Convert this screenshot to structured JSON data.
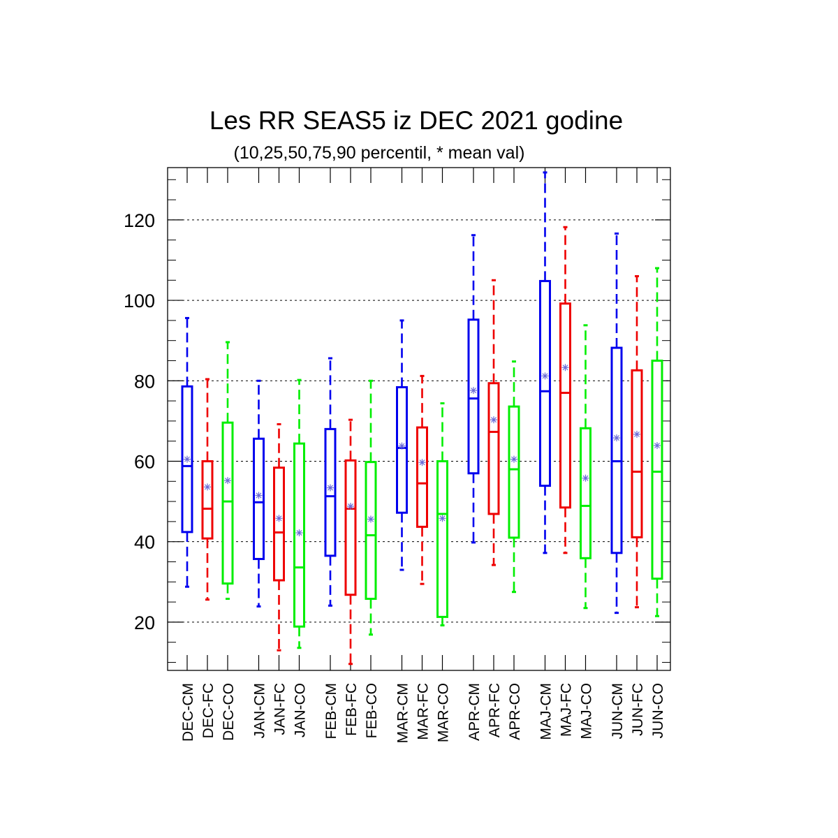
{
  "chart_data": {
    "type": "box",
    "title": "Les RR SEAS5 iz DEC 2021 godine",
    "subtitle": "(10,25,50,75,90 percentil, * mean val)",
    "ylim": [
      8,
      133
    ],
    "yticks": [
      20,
      40,
      60,
      80,
      100,
      120
    ],
    "grid": "horizontal dashed at major ticks",
    "series_colors": {
      "CM": "#0000ee",
      "FC": "#ee0000",
      "CO": "#00ee00"
    },
    "mean_marker_color": "#6b6bd6",
    "boxes": [
      {
        "label": "DEC-CM",
        "p10": 28.8,
        "p25": 42.4,
        "p50": 58.8,
        "p75": 78.6,
        "p90": 95.6,
        "mean": 60.5
      },
      {
        "label": "DEC-FC",
        "p10": 25.6,
        "p25": 40.8,
        "p50": 48.2,
        "p75": 60.0,
        "p90": 80.4,
        "mean": 53.6
      },
      {
        "label": "DEC-CO",
        "p10": 25.8,
        "p25": 29.6,
        "p50": 50.0,
        "p75": 69.6,
        "p90": 89.6,
        "mean": 55.2
      },
      {
        "label": "JAN-CM",
        "p10": 23.9,
        "p25": 35.7,
        "p50": 49.8,
        "p75": 65.6,
        "p90": 80.0,
        "mean": 51.5
      },
      {
        "label": "JAN-FC",
        "p10": 13.0,
        "p25": 30.4,
        "p50": 42.3,
        "p75": 58.4,
        "p90": 69.2,
        "mean": 45.8
      },
      {
        "label": "JAN-CO",
        "p10": 13.6,
        "p25": 18.9,
        "p50": 33.6,
        "p75": 64.4,
        "p90": 80.2,
        "mean": 42.2
      },
      {
        "label": "FEB-CM",
        "p10": 24.1,
        "p25": 36.5,
        "p50": 51.3,
        "p75": 68.0,
        "p90": 85.6,
        "mean": 53.4
      },
      {
        "label": "FEB-FC",
        "p10": 9.6,
        "p25": 26.8,
        "p50": 48.2,
        "p75": 60.2,
        "p90": 70.3,
        "mean": 48.8
      },
      {
        "label": "FEB-CO",
        "p10": 16.9,
        "p25": 25.8,
        "p50": 41.6,
        "p75": 59.8,
        "p90": 80.0,
        "mean": 45.6
      },
      {
        "label": "MAR-CM",
        "p10": 33.0,
        "p25": 47.2,
        "p50": 63.3,
        "p75": 78.4,
        "p90": 95.0,
        "mean": 63.8
      },
      {
        "label": "MAR-FC",
        "p10": 29.5,
        "p25": 43.7,
        "p50": 54.5,
        "p75": 68.4,
        "p90": 81.2,
        "mean": 59.7
      },
      {
        "label": "MAR-CO",
        "p10": 19.2,
        "p25": 21.3,
        "p50": 46.9,
        "p75": 60.0,
        "p90": 74.4,
        "mean": 45.8
      },
      {
        "label": "APR-CM",
        "p10": 39.8,
        "p25": 57.0,
        "p50": 75.6,
        "p75": 95.2,
        "p90": 116.2,
        "mean": 77.6
      },
      {
        "label": "APR-FC",
        "p10": 34.2,
        "p25": 46.9,
        "p50": 67.3,
        "p75": 79.4,
        "p90": 105.0,
        "mean": 70.3
      },
      {
        "label": "APR-CO",
        "p10": 27.5,
        "p25": 41.0,
        "p50": 58.0,
        "p75": 73.6,
        "p90": 84.8,
        "mean": 60.5
      },
      {
        "label": "MAJ-CM",
        "p10": 37.2,
        "p25": 53.9,
        "p50": 77.4,
        "p75": 104.8,
        "p90": 131.8,
        "mean": 81.2
      },
      {
        "label": "MAJ-FC",
        "p10": 37.2,
        "p25": 48.5,
        "p50": 77.0,
        "p75": 99.2,
        "p90": 118.2,
        "mean": 83.3
      },
      {
        "label": "MAJ-CO",
        "p10": 23.5,
        "p25": 35.9,
        "p50": 48.9,
        "p75": 68.2,
        "p90": 93.8,
        "mean": 55.8
      },
      {
        "label": "JUN-CM",
        "p10": 22.3,
        "p25": 37.2,
        "p50": 60.0,
        "p75": 88.2,
        "p90": 116.6,
        "mean": 65.8
      },
      {
        "label": "JUN-FC",
        "p10": 23.7,
        "p25": 41.1,
        "p50": 57.4,
        "p75": 82.6,
        "p90": 106.0,
        "mean": 66.7
      },
      {
        "label": "JUN-CO",
        "p10": 21.5,
        "p25": 30.8,
        "p50": 57.4,
        "p75": 85.0,
        "p90": 108.0,
        "mean": 63.9
      }
    ]
  }
}
